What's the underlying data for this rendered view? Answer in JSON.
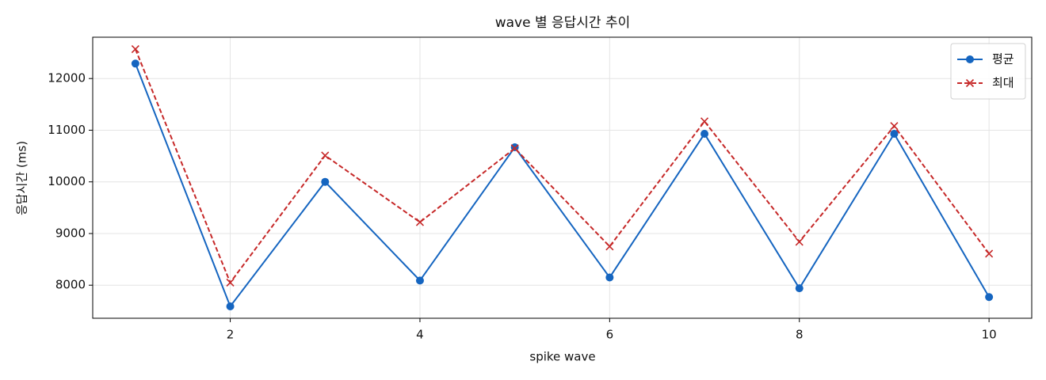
{
  "chart_data": {
    "type": "line",
    "title": "wave 별 응답시간 추이",
    "xlabel": "spike wave",
    "ylabel": "응답시간 (ms)",
    "x": [
      1,
      2,
      3,
      4,
      5,
      6,
      7,
      8,
      9,
      10
    ],
    "series": [
      {
        "name": "평균",
        "color": "#1565c0",
        "marker": "o",
        "linestyle": "solid",
        "values": [
          12290,
          7590,
          10000,
          8090,
          10670,
          8150,
          10930,
          7940,
          10930,
          7770
        ]
      },
      {
        "name": "최대",
        "color": "#c62828",
        "marker": "x",
        "linestyle": "dashed",
        "values": [
          12570,
          8050,
          10510,
          9220,
          10650,
          8750,
          11170,
          8840,
          11080,
          8610
        ]
      }
    ],
    "xlim": [
      0.55,
      10.45
    ],
    "xticks": [
      2,
      4,
      6,
      8,
      10
    ],
    "ylim": [
      7360,
      12800
    ],
    "yticks": [
      8000,
      9000,
      10000,
      11000,
      12000
    ],
    "grid": true,
    "legend": "upper right"
  }
}
